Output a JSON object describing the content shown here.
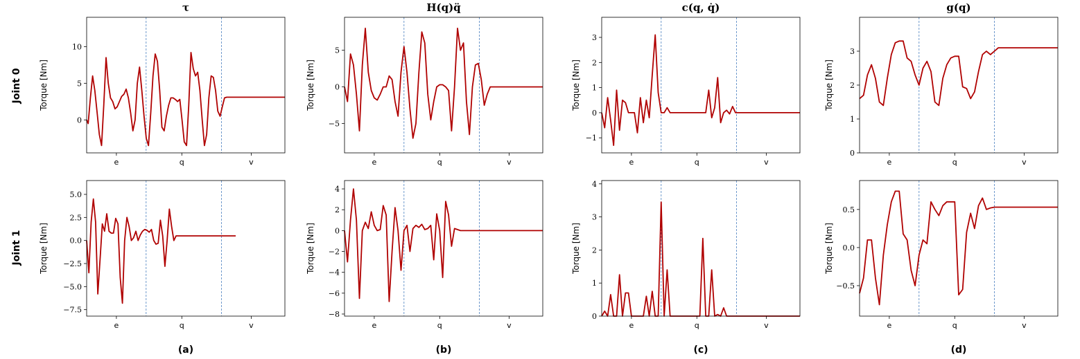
{
  "figure": {
    "column_titles": [
      "τ",
      "H(q)q̈",
      "c(q, q̇)",
      "g(q)"
    ],
    "row_labels": [
      "Joint 0",
      "Joint 1"
    ],
    "panel_labels": [
      "(a)",
      "(b)",
      "(c)",
      "(d)"
    ]
  },
  "colors": {
    "line": "#b00000",
    "divider": "#4a80c0",
    "axes": "#000000"
  },
  "chart_data": [
    {
      "id": "j0-tau",
      "type": "line",
      "ylabel": "Torque [Nm]",
      "xticks": [
        "e",
        "q",
        "v"
      ],
      "ylim": [
        -4.5,
        14
      ],
      "yticks": [
        0,
        5,
        10
      ],
      "ytick_labels": [
        "0",
        "5",
        "10"
      ],
      "x": [
        0,
        0.02,
        0.05,
        0.08,
        0.11,
        0.14,
        0.17,
        0.2,
        0.23,
        0.26,
        0.29,
        0.32,
        0.35,
        0.38,
        0.41,
        0.44,
        0.47,
        0.5,
        0.53,
        0.56,
        0.59,
        0.62,
        0.65,
        0.68,
        0.71,
        0.74,
        0.77,
        0.8,
        0.83,
        0.86,
        0.89,
        0.92,
        0.95,
        0.98,
        1.01,
        1.04,
        1.07,
        1.1,
        1.13,
        1.16,
        1.19,
        1.22,
        1.25,
        1.28,
        1.31,
        1.34,
        1.37,
        1.4,
        1.43,
        1.46,
        1.49,
        1.52,
        1.55,
        1.58,
        1.61,
        1.64,
        1.67,
        1.7,
        1.73,
        1.76,
        1.79,
        1.82,
        1.85,
        1.88,
        1.91,
        1.94,
        1.97,
        2.0,
        2.03,
        2.06,
        2.09,
        2.12,
        2.15,
        2.18,
        2.21,
        2.24,
        2.27,
        2.3,
        2.33,
        2.36,
        2.39,
        2.42,
        2.45,
        2.48,
        2.51,
        2.54,
        2.57,
        2.6,
        2.63,
        2.66
      ],
      "y": [
        0,
        -0.5,
        3,
        6,
        4,
        1,
        -2,
        -3.5,
        2,
        8.5,
        5,
        3,
        2.5,
        1.5,
        1.8,
        2.5,
        3.2,
        3.5,
        4.2,
        3,
        1,
        -1.5,
        0,
        5,
        7.2,
        4,
        0.5,
        -2.5,
        -3.5,
        1,
        6,
        9,
        8,
        4,
        -1,
        -1.5,
        0.5,
        2,
        3,
        3,
        2.8,
        2.5,
        2.8,
        0,
        -3,
        -3.5,
        2,
        9.2,
        7,
        6,
        6.5,
        4,
        0,
        -3.5,
        -2,
        3,
        6,
        5.8,
        4,
        1.2,
        0.5,
        1.8,
        3,
        3.1,
        3.1,
        3.1,
        3.1,
        3.1,
        3.1,
        3.1,
        3.1,
        3.1,
        3.1,
        3.1,
        3.1,
        3.1,
        3.1,
        3.1,
        3.1,
        3.1,
        3.1,
        3.1,
        3.1,
        3.1,
        3.1,
        3.1,
        3.1,
        3.1,
        3.1,
        3.1
      ]
    },
    {
      "id": "j0-hq",
      "type": "line",
      "ylabel": "Torque [Nm]",
      "xticks": [
        "e",
        "q",
        "v"
      ],
      "ylim": [
        -9,
        9.5
      ],
      "yticks": [
        -5,
        0,
        5
      ],
      "ytick_labels": [
        "−5",
        "0",
        "5"
      ],
      "x": [
        0,
        0.03,
        0.06,
        0.09,
        0.12,
        0.15,
        0.18,
        0.21,
        0.24,
        0.27,
        0.3,
        0.33,
        0.36,
        0.39,
        0.42,
        0.45,
        0.48,
        0.51,
        0.54,
        0.57,
        0.6,
        0.63,
        0.66,
        0.69,
        0.72,
        0.75,
        0.78,
        0.81,
        0.84,
        0.87,
        0.9,
        0.93,
        0.96,
        0.99,
        1.02,
        1.05,
        1.08,
        1.11,
        1.14,
        1.17,
        1.2,
        1.23,
        1.26,
        1.29,
        1.32,
        1.35,
        1.38,
        1.41,
        1.44,
        1.47,
        1.5,
        1.53,
        1.56,
        1.59,
        1.62,
        1.65,
        1.68,
        1.71,
        1.74,
        1.77,
        1.8,
        1.83,
        1.86,
        1.89,
        1.92,
        1.95,
        1.98,
        2.0
      ],
      "y": [
        0,
        -2,
        4.5,
        3,
        -1,
        -6,
        3,
        8,
        2,
        -0.5,
        -1.5,
        -1.8,
        -1,
        0,
        0,
        1.5,
        1,
        -2,
        -4,
        2,
        5.5,
        2,
        -3,
        -7,
        -5,
        2,
        7.5,
        6,
        -1,
        -4.5,
        -2,
        0,
        0.3,
        0.3,
        0,
        -0.5,
        -6,
        0,
        8,
        5,
        6,
        -2,
        -6.5,
        0,
        3,
        3.2,
        1,
        -2.5,
        -1,
        0,
        0,
        0,
        0,
        0,
        0,
        0,
        0,
        0,
        0,
        0,
        0,
        0,
        0,
        0,
        0,
        0,
        0,
        0
      ]
    },
    {
      "id": "j0-cq",
      "type": "line",
      "ylabel": "Torque [Nm]",
      "xticks": [
        "e",
        "q",
        "v"
      ],
      "ylim": [
        -1.6,
        3.8
      ],
      "yticks": [
        -1,
        0,
        1,
        2,
        3
      ],
      "ytick_labels": [
        "−1",
        "0",
        "1",
        "2",
        "3"
      ],
      "x": [
        0,
        0.03,
        0.06,
        0.09,
        0.12,
        0.15,
        0.18,
        0.21,
        0.24,
        0.27,
        0.3,
        0.33,
        0.36,
        0.39,
        0.42,
        0.45,
        0.48,
        0.51,
        0.54,
        0.57,
        0.6,
        0.63,
        0.66,
        0.69,
        0.72,
        0.75,
        0.78,
        0.81,
        0.84,
        0.87,
        0.9,
        0.93,
        0.96,
        0.99,
        1.02,
        1.05,
        1.08,
        1.11,
        1.14,
        1.17,
        1.2,
        1.23,
        1.26,
        1.29,
        1.32,
        1.35,
        1.38,
        1.41,
        1.44,
        1.47,
        1.5,
        1.53,
        1.56,
        1.59,
        1.62,
        1.65,
        1.68,
        1.71,
        1.74,
        1.77,
        1.8,
        1.83,
        1.86,
        1.89,
        1.92,
        1.95,
        1.98,
        2.0
      ],
      "y": [
        0,
        -0.6,
        0.6,
        -0.3,
        -1.3,
        0.9,
        -0.7,
        0.5,
        0.4,
        0,
        0,
        0,
        -0.8,
        0.6,
        -0.4,
        0.5,
        -0.2,
        1.5,
        3.1,
        0.8,
        0,
        0,
        0.2,
        0,
        0,
        0,
        0,
        0,
        0,
        0,
        0,
        0,
        0,
        0,
        0,
        0,
        0.9,
        -0.2,
        0.2,
        1.4,
        -0.4,
        0,
        0.1,
        -0.05,
        0.25,
        0,
        0,
        0,
        0,
        0,
        0,
        0,
        0,
        0,
        0,
        0,
        0,
        0,
        0,
        0,
        0,
        0,
        0,
        0,
        0,
        0,
        0,
        0
      ]
    },
    {
      "id": "j0-gq",
      "type": "line",
      "ylabel": "Torque [Nm]",
      "xticks": [
        "e",
        "q",
        "v"
      ],
      "ylim": [
        0,
        4
      ],
      "yticks": [
        0,
        1,
        2,
        3
      ],
      "ytick_labels": [
        "0",
        "1",
        "2",
        "3"
      ],
      "x": [
        0,
        0.04,
        0.08,
        0.12,
        0.16,
        0.2,
        0.24,
        0.28,
        0.32,
        0.36,
        0.4,
        0.44,
        0.48,
        0.52,
        0.56,
        0.6,
        0.64,
        0.68,
        0.72,
        0.76,
        0.8,
        0.84,
        0.88,
        0.92,
        0.96,
        1.0,
        1.04,
        1.08,
        1.12,
        1.16,
        1.2,
        1.24,
        1.28,
        1.32,
        1.36,
        1.4,
        1.44,
        1.48,
        1.52,
        1.56,
        1.6,
        1.64,
        1.68,
        1.72,
        1.76,
        1.8,
        1.84,
        1.88,
        1.92,
        1.96,
        2.0
      ],
      "y": [
        1.6,
        1.7,
        2.3,
        2.6,
        2.2,
        1.5,
        1.4,
        2.2,
        2.9,
        3.25,
        3.3,
        3.3,
        2.8,
        2.7,
        2.3,
        2.0,
        2.5,
        2.7,
        2.4,
        1.5,
        1.4,
        2.2,
        2.6,
        2.8,
        2.85,
        2.85,
        1.95,
        1.9,
        1.6,
        1.8,
        2.4,
        2.9,
        3.0,
        2.9,
        3.0,
        3.1,
        3.1,
        3.1,
        3.1,
        3.1,
        3.1,
        3.1,
        3.1,
        3.1,
        3.1,
        3.1,
        3.1,
        3.1,
        3.1,
        3.1,
        3.1
      ]
    },
    {
      "id": "j1-tau",
      "type": "line",
      "ylabel": "Torque [Nm]",
      "xticks": [
        "e",
        "q",
        "v"
      ],
      "ylim": [
        -8.2,
        6.5
      ],
      "yticks": [
        -7.5,
        -5,
        -2.5,
        0,
        2.5,
        5
      ],
      "ytick_labels": [
        "−7.5",
        "−5.0",
        "−2.5",
        "0.0",
        "2.5",
        "5.0"
      ],
      "x": [
        0,
        0.03,
        0.06,
        0.09,
        0.12,
        0.15,
        0.18,
        0.21,
        0.24,
        0.27,
        0.3,
        0.33,
        0.36,
        0.39,
        0.42,
        0.45,
        0.48,
        0.51,
        0.54,
        0.57,
        0.6,
        0.63,
        0.66,
        0.69,
        0.72,
        0.75,
        0.78,
        0.81,
        0.84,
        0.87,
        0.9,
        0.93,
        0.96,
        0.99,
        1.02,
        1.05,
        1.08,
        1.11,
        1.14,
        1.17,
        1.2,
        1.23,
        1.26,
        1.29,
        1.32,
        1.35,
        1.38,
        1.41,
        1.44,
        1.47,
        1.5,
        1.53,
        1.56,
        1.59,
        1.62,
        1.65,
        1.68,
        1.71,
        1.74,
        1.77,
        1.8,
        1.83,
        1.86,
        1.89,
        1.92,
        1.95,
        1.98,
        2.0
      ],
      "y": [
        0,
        -3.5,
        2,
        4.5,
        2,
        -5.8,
        -2,
        1.8,
        1,
        2.9,
        1,
        0.8,
        0.8,
        2.4,
        1.8,
        -4,
        -6.8,
        0,
        2.5,
        1.5,
        0,
        0.3,
        1,
        0,
        0.6,
        1,
        1.2,
        1.1,
        0.9,
        1.2,
        0,
        -0.4,
        -0.3,
        2.2,
        0.5,
        -2.8,
        0,
        3.4,
        1.5,
        0,
        0.5,
        0.5,
        0.5,
        0.5,
        0.5,
        0.5,
        0.5,
        0.5,
        0.5,
        0.5,
        0.5,
        0.5,
        0.5,
        0.5,
        0.5,
        0.5,
        0.5,
        0.5,
        0.5,
        0.5,
        0.5,
        0.5,
        0.5,
        0.5,
        0.5,
        0.5,
        0.5,
        0.5
      ]
    },
    {
      "id": "j1-hq",
      "type": "line",
      "ylabel": "Torque [Nm]",
      "xticks": [
        "e",
        "q",
        "v"
      ],
      "ylim": [
        -8.2,
        4.8
      ],
      "yticks": [
        -8,
        -6,
        -4,
        -2,
        0,
        2,
        4
      ],
      "ytick_labels": [
        "−8",
        "−6",
        "−4",
        "−2",
        "0",
        "2",
        "4"
      ],
      "x": [
        0,
        0.03,
        0.06,
        0.09,
        0.12,
        0.15,
        0.18,
        0.21,
        0.24,
        0.27,
        0.3,
        0.33,
        0.36,
        0.39,
        0.42,
        0.45,
        0.48,
        0.51,
        0.54,
        0.57,
        0.6,
        0.63,
        0.66,
        0.69,
        0.72,
        0.75,
        0.78,
        0.81,
        0.84,
        0.87,
        0.9,
        0.93,
        0.96,
        0.99,
        1.02,
        1.05,
        1.08,
        1.11,
        1.14,
        1.17,
        1.2,
        1.23,
        1.26,
        1.29,
        1.32,
        1.35,
        1.38,
        1.41,
        1.44,
        1.47,
        1.5,
        1.53,
        1.56,
        1.59,
        1.62,
        1.65,
        1.68,
        1.71,
        1.74,
        1.77,
        1.8,
        1.83,
        1.86,
        1.89,
        1.92,
        1.95,
        1.98,
        2.0
      ],
      "y": [
        0,
        -3,
        1,
        4,
        1,
        -6.5,
        0,
        0.8,
        0.2,
        1.8,
        0.5,
        0,
        0.1,
        2.4,
        1.5,
        -6.8,
        -2,
        2.2,
        0,
        -3.8,
        0,
        0.5,
        -2,
        0.2,
        0.5,
        0.3,
        0.6,
        0.1,
        0.2,
        0.5,
        -2.8,
        1.6,
        0,
        -4.5,
        2.8,
        1.5,
        -1.5,
        0.2,
        0.1,
        0,
        0,
        0,
        0,
        0,
        0,
        0,
        0,
        0,
        0,
        0,
        0,
        0,
        0,
        0,
        0,
        0,
        0,
        0,
        0,
        0,
        0,
        0,
        0,
        0,
        0,
        0,
        0,
        0
      ]
    },
    {
      "id": "j1-cq",
      "type": "line",
      "ylabel": "Torque [Nm]",
      "xticks": [
        "e",
        "q",
        "v"
      ],
      "ylim": [
        0,
        4.1
      ],
      "yticks": [
        0,
        1,
        2,
        3,
        4
      ],
      "ytick_labels": [
        "0",
        "1",
        "2",
        "3",
        "4"
      ],
      "x": [
        0,
        0.03,
        0.06,
        0.09,
        0.12,
        0.15,
        0.18,
        0.21,
        0.24,
        0.27,
        0.3,
        0.33,
        0.36,
        0.39,
        0.42,
        0.45,
        0.48,
        0.51,
        0.54,
        0.57,
        0.6,
        0.63,
        0.66,
        0.69,
        0.72,
        0.75,
        0.78,
        0.81,
        0.84,
        0.87,
        0.9,
        0.93,
        0.96,
        0.99,
        1.02,
        1.05,
        1.08,
        1.11,
        1.14,
        1.17,
        1.2,
        1.23,
        1.26,
        1.29,
        1.32,
        1.35,
        1.38,
        1.41,
        1.44,
        1.47,
        1.5,
        1.53,
        1.56,
        1.59,
        1.62,
        1.65,
        1.68,
        1.71,
        1.74,
        1.77,
        1.8,
        1.83,
        1.86,
        1.89,
        1.92,
        1.95,
        1.98,
        2.0
      ],
      "y": [
        0,
        0.15,
        0,
        0.65,
        0,
        0,
        1.25,
        0,
        0.7,
        0.7,
        0,
        0,
        0,
        0,
        0,
        0.6,
        0,
        0.75,
        0,
        0,
        3.45,
        0,
        1.4,
        0,
        0,
        0,
        0,
        0,
        0,
        0,
        0,
        0,
        0,
        0,
        2.35,
        0,
        0,
        1.4,
        0,
        0.05,
        0,
        0.25,
        0,
        0,
        0,
        0,
        0,
        0,
        0,
        0,
        0,
        0,
        0,
        0,
        0,
        0,
        0,
        0,
        0,
        0,
        0,
        0,
        0,
        0,
        0,
        0,
        0,
        0
      ]
    },
    {
      "id": "j1-gq",
      "type": "line",
      "ylabel": "Torque [Nm]",
      "xticks": [
        "e",
        "q",
        "v"
      ],
      "ylim": [
        -0.9,
        0.88
      ],
      "yticks": [
        -0.5,
        0,
        0.5
      ],
      "ytick_labels": [
        "−0.5",
        "0.0",
        "0.5"
      ],
      "x": [
        0,
        0.04,
        0.08,
        0.12,
        0.16,
        0.2,
        0.24,
        0.28,
        0.32,
        0.36,
        0.4,
        0.44,
        0.48,
        0.52,
        0.56,
        0.6,
        0.64,
        0.68,
        0.72,
        0.76,
        0.8,
        0.84,
        0.88,
        0.92,
        0.96,
        1.0,
        1.04,
        1.08,
        1.12,
        1.16,
        1.2,
        1.24,
        1.28,
        1.32,
        1.36,
        1.4,
        1.44,
        1.48,
        1.52,
        1.56,
        1.6,
        1.64,
        1.68,
        1.72,
        1.76,
        1.8,
        1.84,
        1.88,
        1.92,
        1.96,
        2.0
      ],
      "y": [
        -0.6,
        -0.4,
        0.1,
        0.1,
        -0.4,
        -0.75,
        -0.1,
        0.3,
        0.6,
        0.74,
        0.74,
        0.18,
        0.1,
        -0.3,
        -0.5,
        -0.1,
        0.1,
        0.05,
        0.6,
        0.5,
        0.42,
        0.55,
        0.6,
        0.6,
        0.6,
        -0.62,
        -0.55,
        0.2,
        0.45,
        0.25,
        0.55,
        0.65,
        0.5,
        0.52,
        0.53,
        0.53,
        0.53,
        0.53,
        0.53,
        0.53,
        0.53,
        0.53,
        0.53,
        0.53,
        0.53,
        0.53,
        0.53,
        0.53,
        0.53,
        0.53,
        0.53
      ]
    }
  ]
}
